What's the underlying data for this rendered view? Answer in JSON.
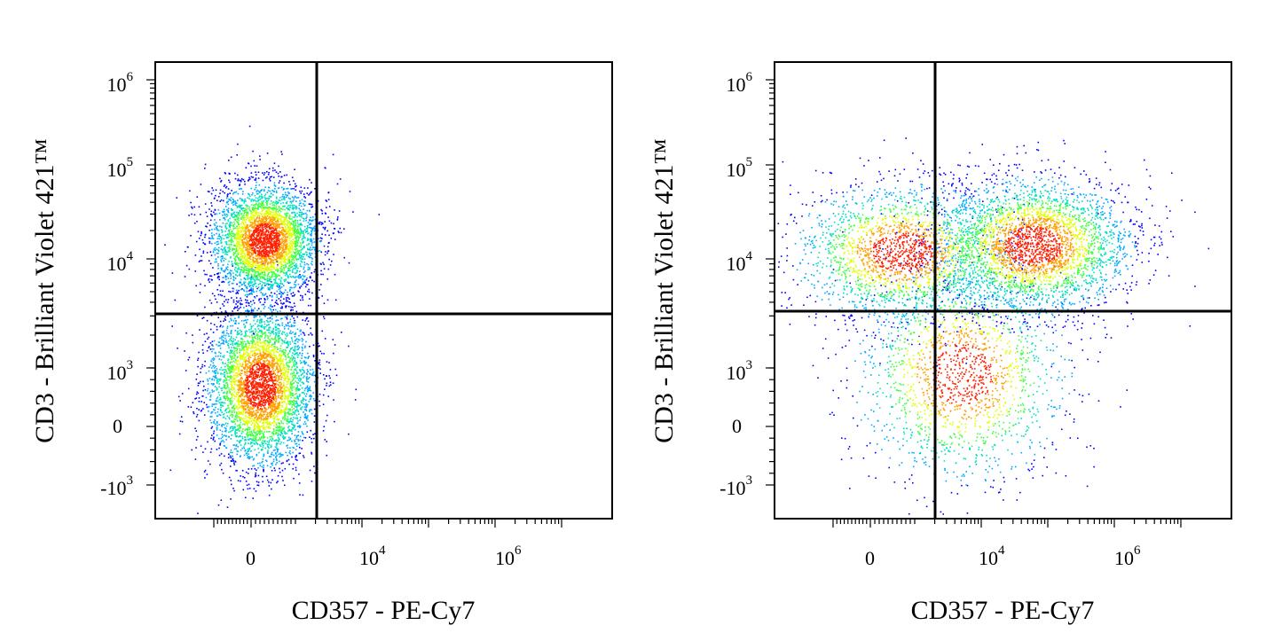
{
  "chart_data": [
    {
      "type": "scatter",
      "subtype": "flow-cytometry-density-dot-plot",
      "xlabel": "CD357 - PE-Cy7",
      "ylabel": "CD3 - Brilliant Violet 421™",
      "x_scale": "biexponential",
      "y_scale": "biexponential",
      "x_ticks": [
        {
          "label": "0",
          "base": "0",
          "exp": ""
        },
        {
          "label": "10^4",
          "base": "10",
          "exp": "4"
        },
        {
          "label": "10^6",
          "base": "10",
          "exp": "6"
        }
      ],
      "y_ticks": [
        {
          "label": "10^6",
          "base": "10",
          "exp": "6"
        },
        {
          "label": "10^5",
          "base": "10",
          "exp": "5"
        },
        {
          "label": "10^4",
          "base": "10",
          "exp": "4"
        },
        {
          "label": "10^3",
          "base": "10",
          "exp": "3"
        },
        {
          "label": "0",
          "base": "0",
          "exp": ""
        },
        {
          "label": "-10^3",
          "base": "-10",
          "exp": "3"
        }
      ],
      "quadrant_gate": {
        "x": 1500,
        "y": 2700
      },
      "color_scale": [
        "#0000ff",
        "#00aaff",
        "#00e0c0",
        "#40ff40",
        "#e0ff00",
        "#ffa000",
        "#ff2000"
      ],
      "populations": [
        {
          "name_visible": false,
          "x_center": 300,
          "y_center": 16000,
          "relative_size": 0.47
        },
        {
          "name_visible": false,
          "x_center": 200,
          "y_center": 700,
          "relative_size": 0.53
        }
      ],
      "grid": false,
      "legend": "none"
    },
    {
      "type": "scatter",
      "subtype": "flow-cytometry-density-dot-plot",
      "xlabel": "CD357 - PE-Cy7",
      "ylabel": "CD3 - Brilliant Violet 421™",
      "x_scale": "biexponential",
      "y_scale": "biexponential",
      "x_ticks": [
        {
          "label": "0",
          "base": "0",
          "exp": ""
        },
        {
          "label": "10^4",
          "base": "10",
          "exp": "4"
        },
        {
          "label": "10^6",
          "base": "10",
          "exp": "6"
        }
      ],
      "y_ticks": [
        {
          "label": "10^6",
          "base": "10",
          "exp": "6"
        },
        {
          "label": "10^5",
          "base": "10",
          "exp": "5"
        },
        {
          "label": "10^4",
          "base": "10",
          "exp": "4"
        },
        {
          "label": "10^3",
          "base": "10",
          "exp": "3"
        },
        {
          "label": "0",
          "base": "0",
          "exp": ""
        },
        {
          "label": "-10^3",
          "base": "-10",
          "exp": "3"
        }
      ],
      "quadrant_gate": {
        "x": 1500,
        "y": 2900
      },
      "color_scale": [
        "#0000ff",
        "#00aaff",
        "#00e0c0",
        "#40ff40",
        "#e0ff00",
        "#ffa000",
        "#ff2000"
      ],
      "populations": [
        {
          "name_visible": false,
          "x_center": 700,
          "y_center": 12000,
          "relative_size": 0.3
        },
        {
          "name_visible": false,
          "x_center": 60000,
          "y_center": 14000,
          "relative_size": 0.45
        },
        {
          "name_visible": false,
          "x_center": 5000,
          "y_center": 900,
          "relative_size": 0.25
        }
      ],
      "grid": false,
      "legend": "none"
    }
  ]
}
